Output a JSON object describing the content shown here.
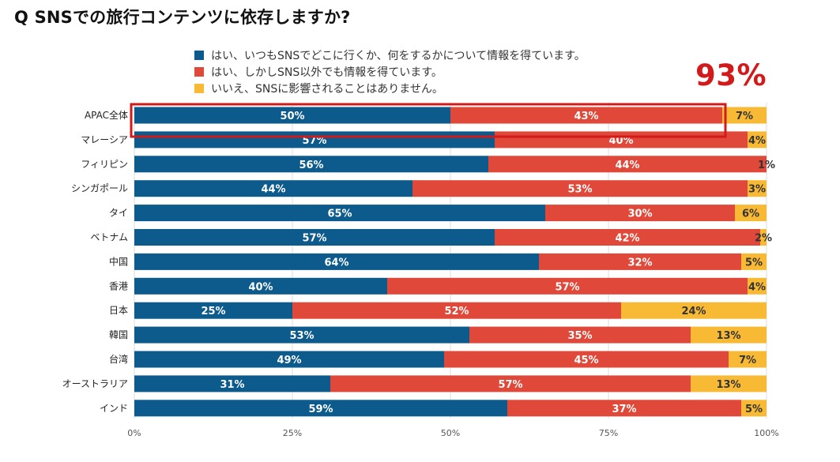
{
  "chart_data": {
    "type": "bar",
    "orientation": "horizontal",
    "stacked": true,
    "title": "Q SNSでの旅行コンテンツに依存しますか?",
    "categories": [
      "APAC全体",
      "マレーシア",
      "フィリピン",
      "シンガポール",
      "タイ",
      "ベトナム",
      "中国",
      "香港",
      "日本",
      "韓国",
      "台湾",
      "オーストラリア",
      "インド"
    ],
    "series": [
      {
        "name": "はい、いつもSNSでどこに行くか、何をするかについて情報を得ています。",
        "color": "#0d5a8c",
        "label_color": "#ffffff",
        "values": [
          50,
          57,
          56,
          44,
          65,
          57,
          64,
          40,
          25,
          53,
          49,
          31,
          59
        ]
      },
      {
        "name": "はい、しかしSNS以外でも情報を得ています。",
        "color": "#e0493a",
        "label_color": "#ffffff",
        "values": [
          43,
          40,
          44,
          53,
          30,
          42,
          32,
          57,
          52,
          35,
          45,
          57,
          37
        ]
      },
      {
        "name": "いいえ、SNSに影響されることはありません。",
        "color": "#f8ba35",
        "label_color": "#333333",
        "values": [
          7,
          4,
          1,
          3,
          6,
          2,
          5,
          4,
          24,
          13,
          7,
          13,
          5
        ]
      }
    ],
    "xlim": [
      0,
      100
    ],
    "xticks": [
      "0%",
      "25%",
      "50%",
      "75%",
      "100%"
    ],
    "grid": true,
    "legend_position": "top",
    "annotation": {
      "text": "93%",
      "color": "#d31a1a",
      "target": "APAC全体"
    }
  }
}
